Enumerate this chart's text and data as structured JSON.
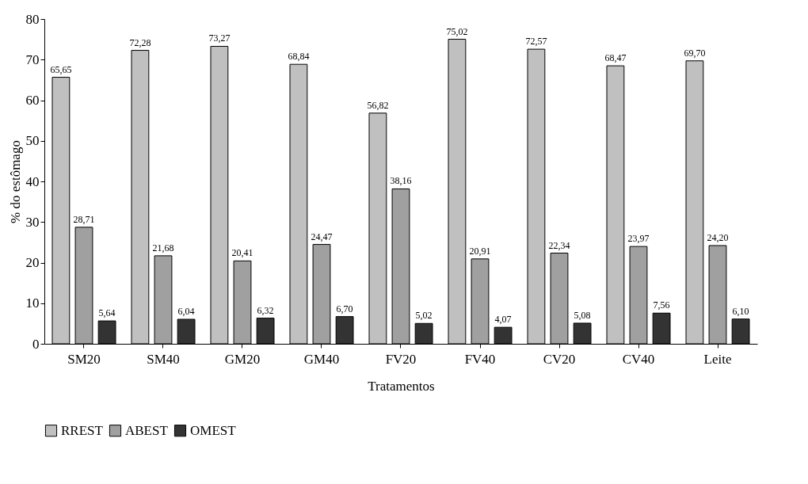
{
  "chart_data": {
    "type": "bar",
    "xlabel": "Tratamentos",
    "ylabel": "% do estômago",
    "categories": [
      "SM20",
      "SM40",
      "GM20",
      "GM40",
      "FV20",
      "FV40",
      "CV20",
      "CV40",
      "Leite"
    ],
    "series": [
      {
        "name": "RREST",
        "color": "#c0c0c0",
        "values": [
          65.65,
          72.28,
          73.27,
          68.84,
          56.82,
          75.02,
          72.57,
          68.47,
          69.7
        ],
        "value_labels": [
          "65,65",
          "72,28",
          "73,27",
          "68,84",
          "56,82",
          "75,02",
          "72,57",
          "68,47",
          "69,70"
        ]
      },
      {
        "name": "ABEST",
        "color": "#a0a0a0",
        "values": [
          28.71,
          21.68,
          20.41,
          24.47,
          38.16,
          20.91,
          22.34,
          23.97,
          24.2
        ],
        "value_labels": [
          "28,71",
          "21,68",
          "20,41",
          "24,47",
          "38,16",
          "20,91",
          "22,34",
          "23,97",
          "24,20"
        ]
      },
      {
        "name": "OMEST",
        "color": "#333333",
        "values": [
          5.64,
          6.04,
          6.32,
          6.7,
          5.02,
          4.07,
          5.08,
          7.56,
          6.1
        ],
        "value_labels": [
          "5,64",
          "6,04",
          "6,32",
          "6,70",
          "5,02",
          "4,07",
          "5,08",
          "7,56",
          "6,10"
        ]
      }
    ],
    "ylim": [
      0,
      80
    ],
    "yticks": [
      0,
      10,
      20,
      30,
      40,
      50,
      60,
      70,
      80
    ],
    "legend": "bottom"
  }
}
